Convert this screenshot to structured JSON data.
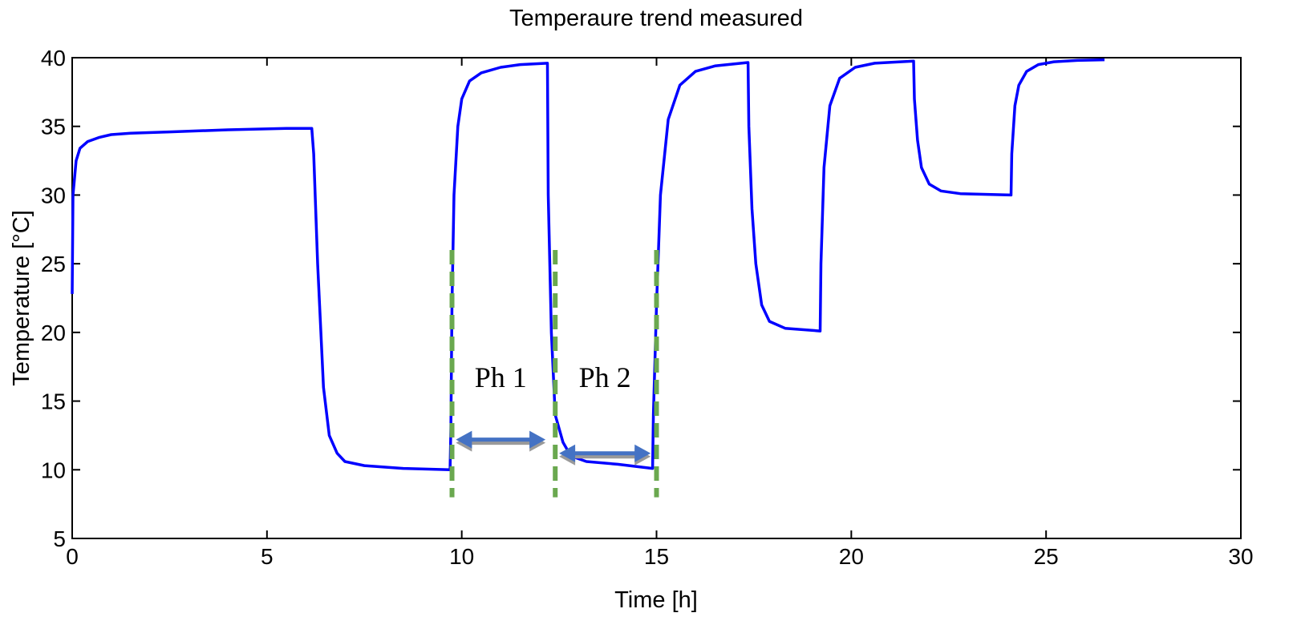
{
  "chart_data": {
    "type": "line",
    "title": "Temperaure trend measured",
    "xlabel": "Time [h]",
    "ylabel": "Temperature [°C]",
    "xlim": [
      0,
      30
    ],
    "ylim": [
      5,
      40
    ],
    "xticks": [
      0,
      5,
      10,
      15,
      20,
      25,
      30
    ],
    "yticks": [
      5,
      10,
      15,
      20,
      25,
      30,
      35,
      40
    ],
    "grid": false,
    "series": [
      {
        "color": "#0000ff",
        "x": [
          0.0,
          0.02,
          0.1,
          0.2,
          0.4,
          0.7,
          1.0,
          1.5,
          2.5,
          4.0,
          5.5,
          6.15,
          6.2,
          6.3,
          6.45,
          6.6,
          6.8,
          7.0,
          7.5,
          8.5,
          9.7,
          9.72,
          9.75,
          9.8,
          9.9,
          10.0,
          10.2,
          10.5,
          11.0,
          11.5,
          12.2,
          12.22,
          12.3,
          12.4,
          12.6,
          12.8,
          13.2,
          14.0,
          14.9,
          14.92,
          15.0,
          15.1,
          15.3,
          15.6,
          16.0,
          16.5,
          17.35,
          17.37,
          17.45,
          17.55,
          17.7,
          17.9,
          18.3,
          19.2,
          19.22,
          19.3,
          19.45,
          19.7,
          20.1,
          20.6,
          21.6,
          21.62,
          21.7,
          21.8,
          22.0,
          22.3,
          22.8,
          24.1,
          24.12,
          24.2,
          24.3,
          24.5,
          24.8,
          25.2,
          25.8,
          26.5
        ],
        "y": [
          22.8,
          30.0,
          32.5,
          33.4,
          33.9,
          34.2,
          34.4,
          34.5,
          34.6,
          34.75,
          34.85,
          34.85,
          33.0,
          25.0,
          16.0,
          12.5,
          11.2,
          10.6,
          10.3,
          10.1,
          10.0,
          13.0,
          22.0,
          30.0,
          35.0,
          37.0,
          38.3,
          38.9,
          39.3,
          39.5,
          39.6,
          30.0,
          20.0,
          14.0,
          12.0,
          11.0,
          10.6,
          10.4,
          10.1,
          14.0,
          22.0,
          30.0,
          35.5,
          38.0,
          39.0,
          39.4,
          39.65,
          35.0,
          29.0,
          25.0,
          22.0,
          20.8,
          20.3,
          20.1,
          25.0,
          32.0,
          36.5,
          38.5,
          39.3,
          39.6,
          39.75,
          37.0,
          34.0,
          32.0,
          30.8,
          30.3,
          30.1,
          30.0,
          33.0,
          36.5,
          38.0,
          39.0,
          39.5,
          39.7,
          39.8,
          39.85
        ]
      }
    ],
    "phase_markers_x": [
      9.75,
      12.4,
      15.0
    ],
    "phase_marker_y_range": [
      8.0,
      26.0
    ],
    "phases": [
      {
        "label": "Ph 1",
        "x_start": 9.85,
        "x_end": 12.15,
        "arrow_y": 12.2
      },
      {
        "label": "Ph 2",
        "x_start": 12.5,
        "x_end": 14.85,
        "arrow_y": 11.2
      }
    ],
    "colors": {
      "line": "#0000ff",
      "marker": "#6aa84f",
      "arrow": "#4472c4",
      "arrow_shadow": "#9a9a9a"
    }
  }
}
